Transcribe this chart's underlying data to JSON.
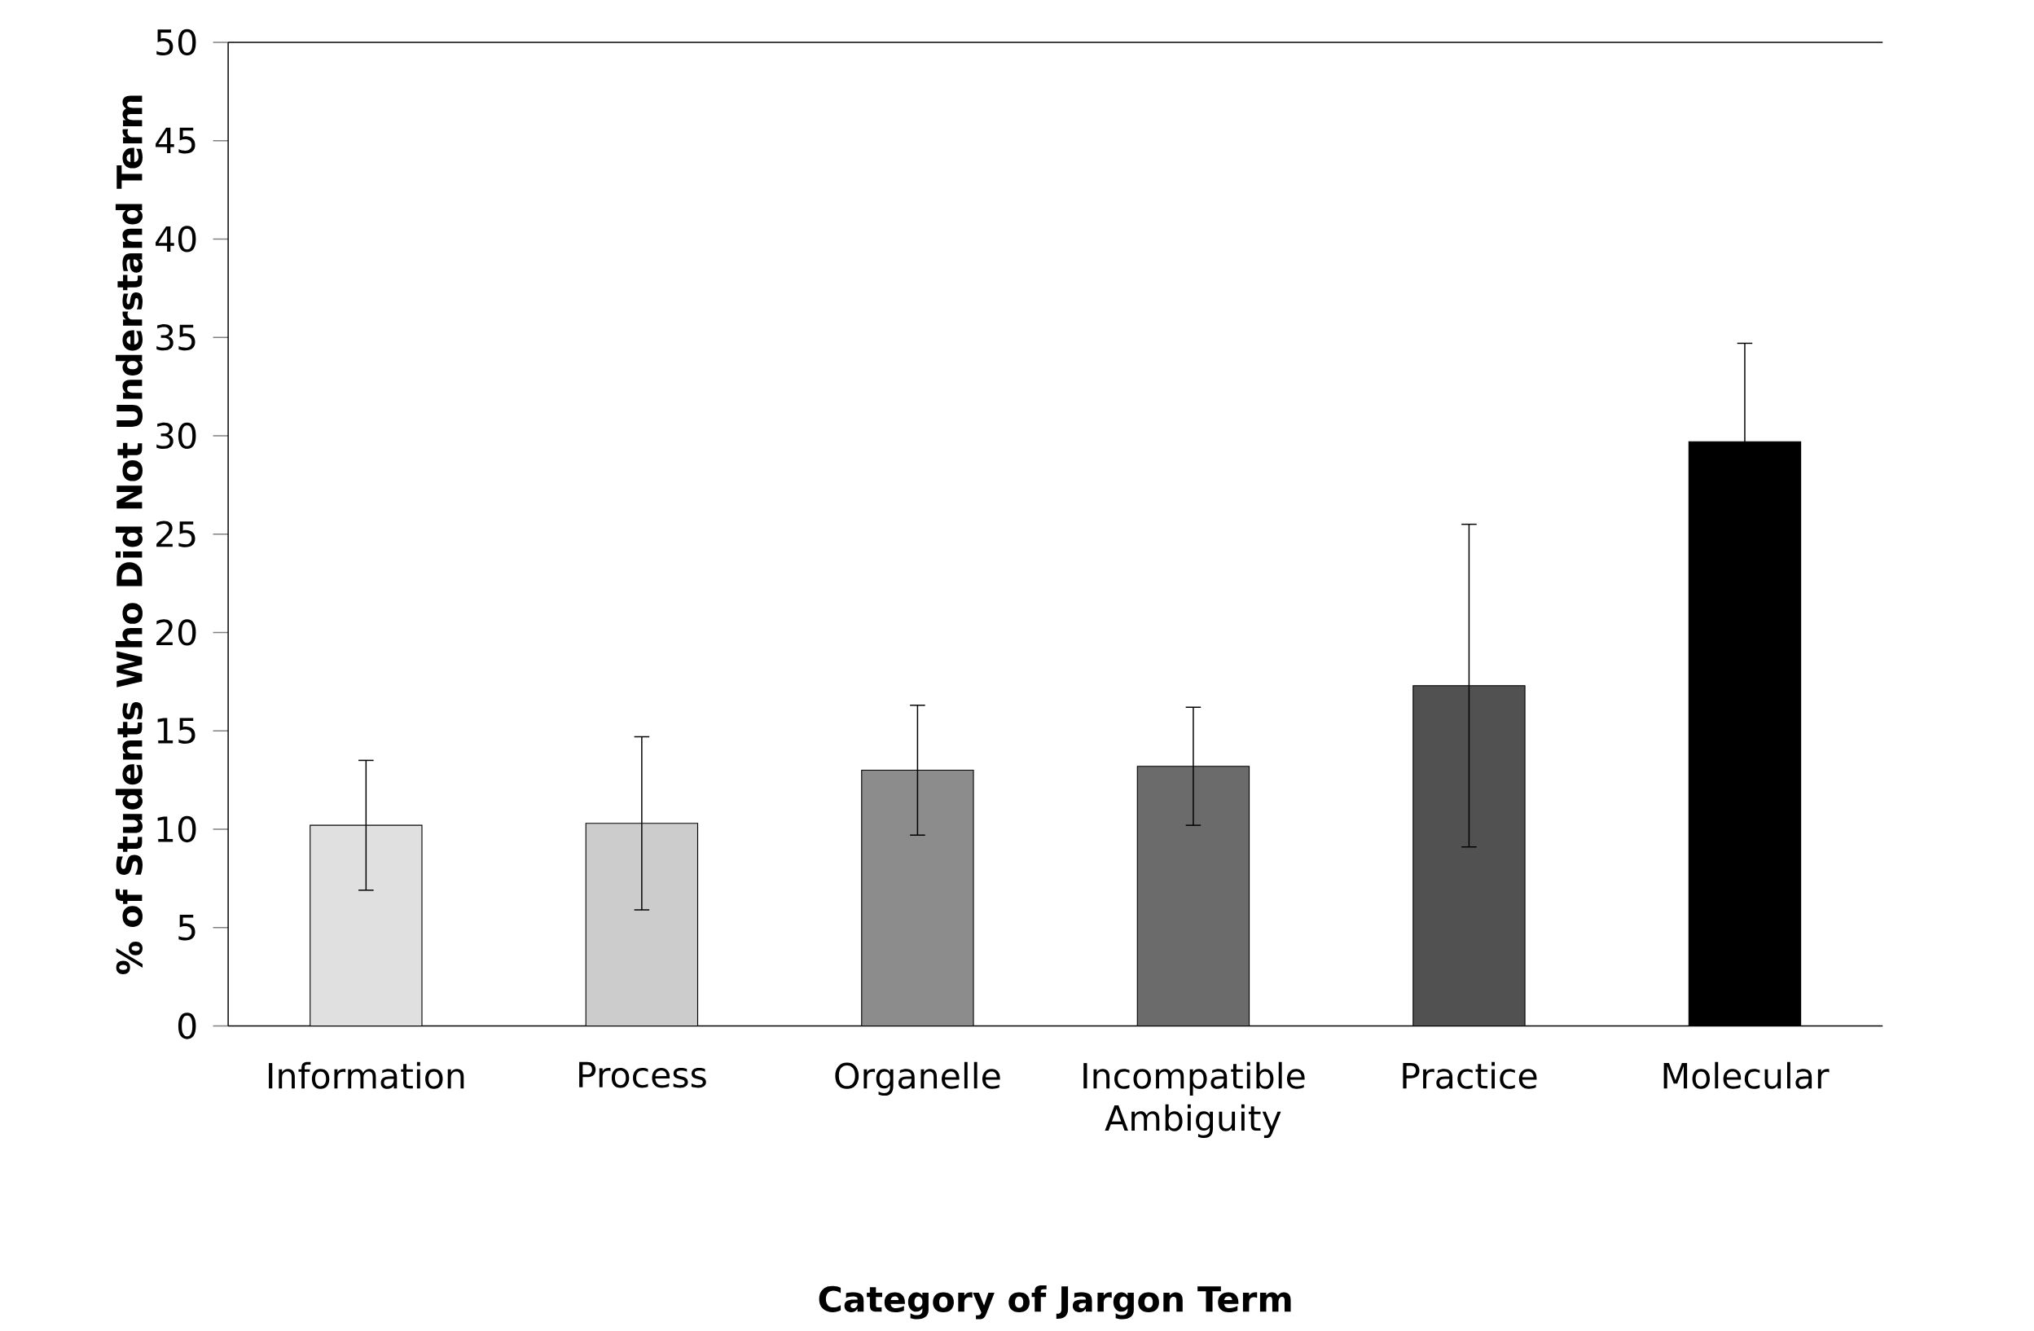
{
  "chart_data": {
    "type": "bar",
    "xlabel": "Category of Jargon Term",
    "ylabel": "% of Students Who Did Not Understand Term",
    "categories": [
      "Information",
      "Process",
      "Organelle",
      "Incompatible Ambiguity",
      "Practice",
      "Molecular"
    ],
    "values": [
      10.2,
      10.3,
      13.0,
      13.2,
      17.3,
      29.7
    ],
    "errors": [
      3.3,
      4.4,
      3.3,
      3.0,
      8.2,
      5.0
    ],
    "colors": [
      "#e0e0e0",
      "#cccccc",
      "#8c8c8c",
      "#6b6b6b",
      "#515151",
      "#000000"
    ],
    "ylim": [
      0,
      50
    ],
    "yticks": [
      0,
      5,
      10,
      15,
      20,
      25,
      30,
      35,
      40,
      45,
      50
    ]
  }
}
